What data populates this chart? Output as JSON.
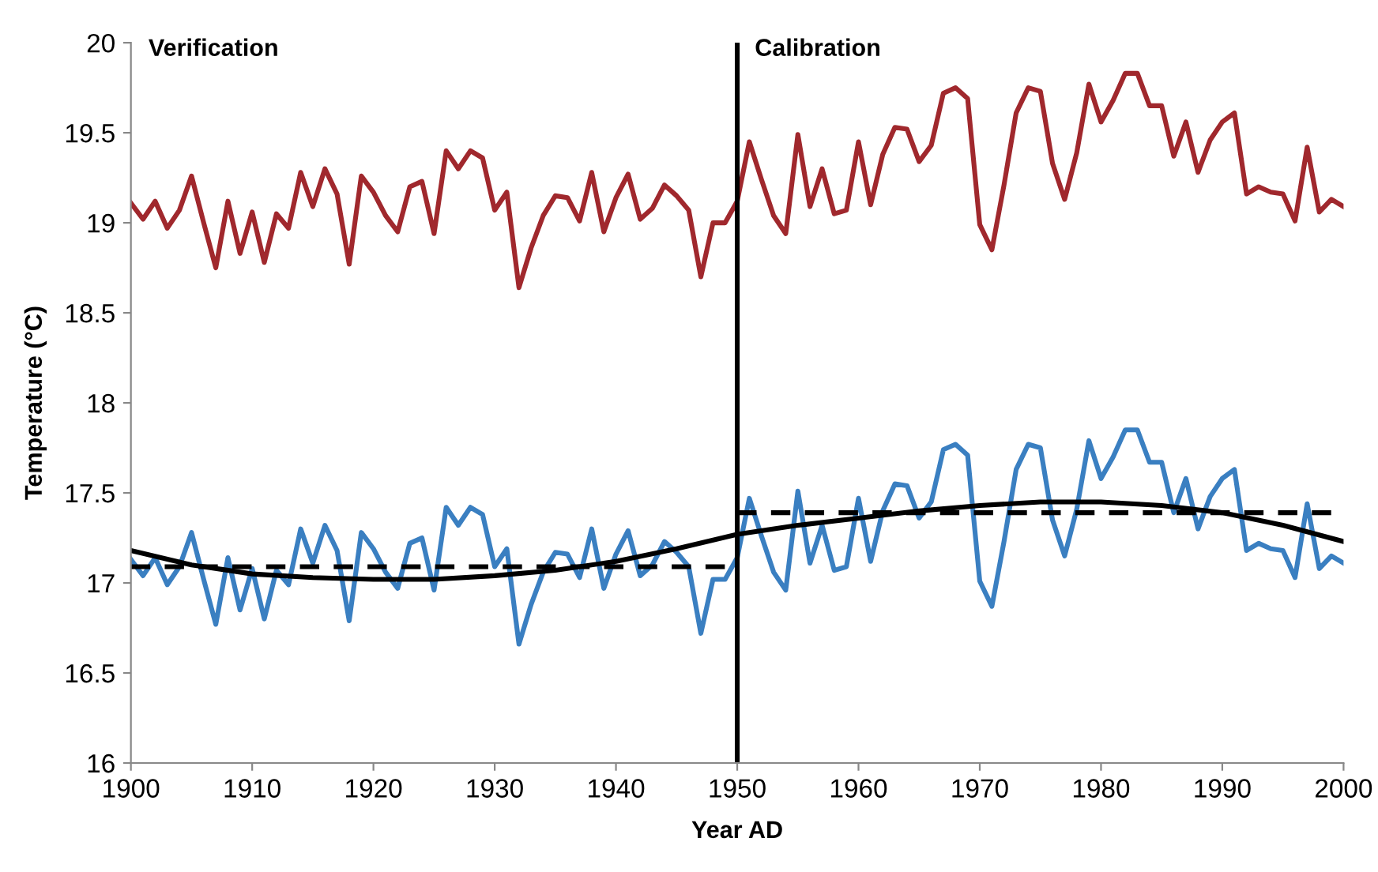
{
  "chart_data": {
    "type": "line",
    "xlabel": "Year AD",
    "ylabel": "Temperature (°C)",
    "x": [
      1900,
      1901,
      1902,
      1903,
      1904,
      1905,
      1906,
      1907,
      1908,
      1909,
      1910,
      1911,
      1912,
      1913,
      1914,
      1915,
      1916,
      1917,
      1918,
      1919,
      1920,
      1921,
      1922,
      1923,
      1924,
      1925,
      1926,
      1927,
      1928,
      1929,
      1930,
      1931,
      1932,
      1933,
      1934,
      1935,
      1936,
      1937,
      1938,
      1939,
      1940,
      1941,
      1942,
      1943,
      1944,
      1945,
      1946,
      1947,
      1948,
      1949,
      1950,
      1951,
      1952,
      1953,
      1954,
      1955,
      1956,
      1957,
      1958,
      1959,
      1960,
      1961,
      1962,
      1963,
      1964,
      1965,
      1966,
      1967,
      1968,
      1969,
      1970,
      1971,
      1972,
      1973,
      1974,
      1975,
      1976,
      1977,
      1978,
      1979,
      1980,
      1981,
      1982,
      1983,
      1984,
      1985,
      1986,
      1987,
      1988,
      1989,
      1990,
      1991,
      1992,
      1993,
      1994,
      1995,
      1996,
      1997,
      1998,
      1999,
      2000
    ],
    "series": [
      {
        "color": "#a0282d",
        "values": [
          19.11,
          19.02,
          19.12,
          18.97,
          19.07,
          19.26,
          19.0,
          18.75,
          19.12,
          18.83,
          19.06,
          18.78,
          19.05,
          18.97,
          19.28,
          19.09,
          19.3,
          19.16,
          18.77,
          19.26,
          19.17,
          19.04,
          18.95,
          19.2,
          19.23,
          18.94,
          19.4,
          19.3,
          19.4,
          19.36,
          19.07,
          19.17,
          18.64,
          18.86,
          19.04,
          19.15,
          19.14,
          19.01,
          19.28,
          18.95,
          19.14,
          19.27,
          19.02,
          19.08,
          19.21,
          19.15,
          19.07,
          18.7,
          19.0,
          19.0,
          19.12,
          19.45,
          19.24,
          19.04,
          18.94,
          19.49,
          19.09,
          19.3,
          19.05,
          19.07,
          19.45,
          19.1,
          19.38,
          19.53,
          19.52,
          19.34,
          19.43,
          19.72,
          19.75,
          19.69,
          18.99,
          18.85,
          19.21,
          19.61,
          19.75,
          19.73,
          19.33,
          19.13,
          19.39,
          19.77,
          19.56,
          19.68,
          19.83,
          19.83,
          19.65,
          19.65,
          19.37,
          19.56,
          19.28,
          19.46,
          19.56,
          19.61,
          19.16,
          19.2,
          19.17,
          19.16,
          19.01,
          19.42,
          19.06,
          19.13,
          19.09
        ]
      },
      {
        "color": "#3a7fc1",
        "values": [
          17.13,
          17.04,
          17.14,
          16.99,
          17.09,
          17.28,
          17.02,
          16.77,
          17.14,
          16.85,
          17.08,
          16.8,
          17.07,
          16.99,
          17.3,
          17.11,
          17.32,
          17.18,
          16.79,
          17.28,
          17.19,
          17.06,
          16.97,
          17.22,
          17.25,
          16.96,
          17.42,
          17.32,
          17.42,
          17.38,
          17.09,
          17.19,
          16.66,
          16.88,
          17.06,
          17.17,
          17.16,
          17.03,
          17.3,
          16.97,
          17.16,
          17.29,
          17.04,
          17.1,
          17.23,
          17.17,
          17.09,
          16.72,
          17.02,
          17.02,
          17.14,
          17.47,
          17.26,
          17.06,
          16.96,
          17.51,
          17.11,
          17.32,
          17.07,
          17.09,
          17.47,
          17.12,
          17.4,
          17.55,
          17.54,
          17.36,
          17.45,
          17.74,
          17.77,
          17.71,
          17.01,
          16.87,
          17.23,
          17.63,
          17.77,
          17.75,
          17.35,
          17.15,
          17.41,
          17.79,
          17.58,
          17.7,
          17.85,
          17.85,
          17.67,
          17.67,
          17.39,
          17.58,
          17.3,
          17.48,
          17.58,
          17.63,
          17.18,
          17.22,
          17.19,
          17.18,
          17.03,
          17.44,
          17.08,
          17.15,
          17.11
        ]
      },
      {
        "color": "#000000",
        "line_style": "dashed",
        "x": [
          1900,
          1950
        ],
        "values": [
          17.09,
          17.09
        ]
      },
      {
        "color": "#000000",
        "line_style": "dashed",
        "x": [
          1950,
          2000
        ],
        "values": [
          17.39,
          17.39
        ]
      },
      {
        "color": "#000000",
        "x": [
          1900,
          1905,
          1910,
          1915,
          1920,
          1925,
          1930,
          1935,
          1940,
          1945,
          1950,
          1955,
          1960,
          1965,
          1970,
          1975,
          1980,
          1985,
          1990,
          1995,
          2000
        ],
        "values": [
          17.18,
          17.1,
          17.05,
          17.03,
          17.02,
          17.02,
          17.04,
          17.07,
          17.12,
          17.19,
          17.27,
          17.32,
          17.36,
          17.4,
          17.43,
          17.45,
          17.45,
          17.43,
          17.39,
          17.32,
          17.23
        ]
      }
    ],
    "ref_lines": [
      {
        "axis": "x",
        "value": 1950,
        "color": "#000000"
      }
    ],
    "annotations": [
      "Verification",
      "Calibration"
    ],
    "xlim": [
      1900,
      2000
    ],
    "xticks": [
      1900,
      1910,
      1920,
      1930,
      1940,
      1950,
      1960,
      1970,
      1980,
      1990,
      2000
    ],
    "ylim": [
      16,
      20
    ],
    "yticks": [
      16,
      16.5,
      17,
      17.5,
      18,
      18.5,
      19,
      19.5,
      20
    ],
    "grid": false,
    "legend": false
  }
}
